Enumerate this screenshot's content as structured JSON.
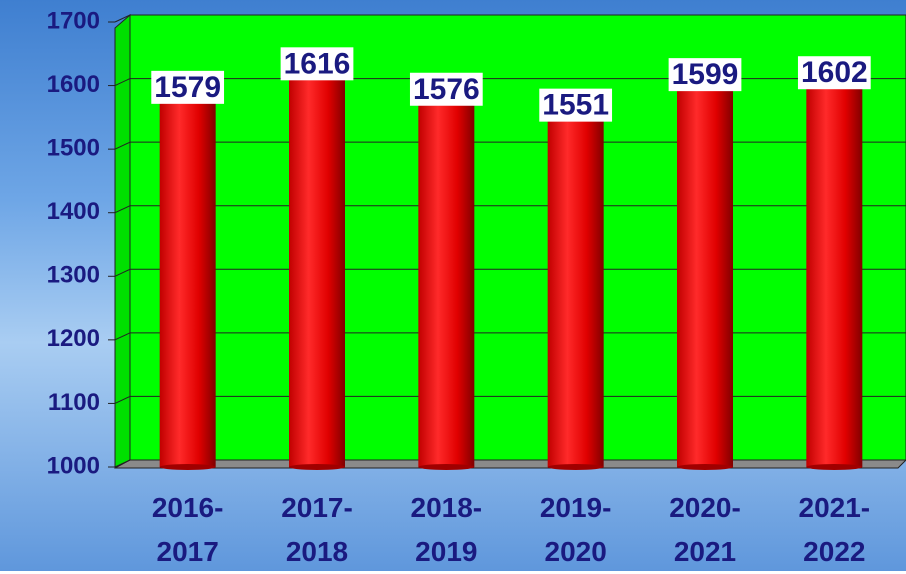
{
  "chart_data": {
    "type": "bar",
    "categories": [
      "2016-2017",
      "2017-2018",
      "2018-2019",
      "2019-2020",
      "2020-2021",
      "2021-2022"
    ],
    "values": [
      1579,
      1616,
      1576,
      1551,
      1599,
      1602
    ],
    "color": "#ff0000",
    "ylim": [
      1000,
      1700
    ],
    "yticks": [
      1000,
      1100,
      1200,
      1300,
      1400,
      1500,
      1600,
      1700
    ],
    "grid": true
  }
}
